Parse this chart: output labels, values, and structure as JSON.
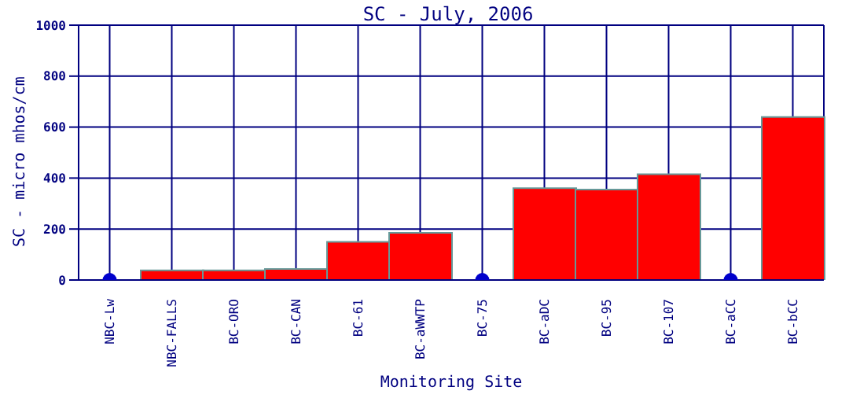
{
  "chart_data": {
    "type": "bar",
    "title": "SC - July, 2006",
    "xlabel": "Monitoring Site",
    "ylabel": "SC - micro mhos/cm",
    "categories": [
      "NBC-Lw",
      "NBC-FALLS",
      "BC-ORO",
      "BC-CAN",
      "BC-61",
      "BC-aWWTP",
      "BC-75",
      "BC-aDC",
      "BC-95",
      "BC-107",
      "BC-aCC",
      "BC-bCC"
    ],
    "series": [
      {
        "color": "#ff0000",
        "values": [
          null,
          38,
          38,
          43,
          150,
          185,
          null,
          360,
          355,
          415,
          null,
          640
        ]
      },
      {
        "type": "scatter",
        "color": "#0000cc",
        "x": [
          "NBC-Lw",
          "BC-75",
          "BC-aCC"
        ],
        "values": [
          0,
          0,
          0
        ]
      }
    ],
    "ylim": [
      0,
      1000
    ],
    "yticks": [
      0,
      200,
      400,
      600,
      800,
      1000
    ],
    "grid": true,
    "marker": "circle"
  }
}
